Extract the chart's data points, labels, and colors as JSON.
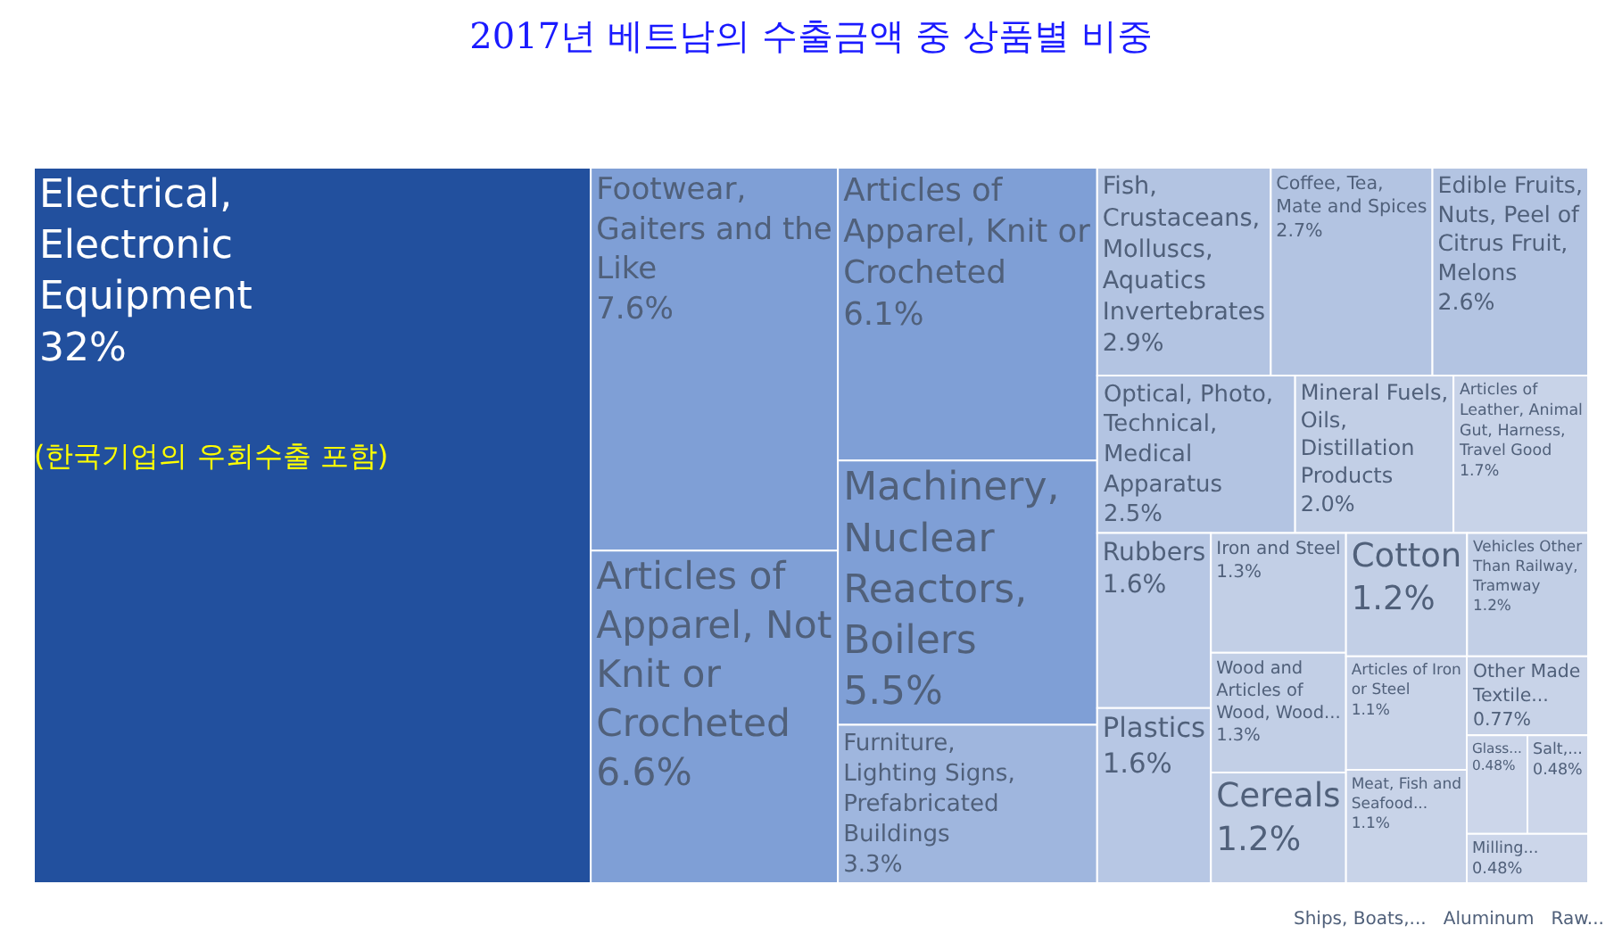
{
  "chart_data": {
    "type": "other",
    "title": "2017년 베트남의 수출금액 중 상품별 비중",
    "categories": [
      "Electrical, Electronic Equipment",
      "Footwear, Gaiters and the Like",
      "Articles of Apparel, Not Knit or Crocheted",
      "Articles of Apparel, Knit or Crocheted",
      "Machinery, Nuclear Reactors, Boilers",
      "Furniture, Lighting Signs, Prefabricated Buildings",
      "Fish, Crustaceans, Molluscs, Aquatics Invertebrates",
      "Coffee, Tea, Mate and Spices",
      "Edible Fruits, Nuts, Peel of Citrus Fruit, Melons",
      "Optical, Photo, Technical, Medical Apparatus",
      "Mineral Fuels, Oils, Distillation Products",
      "Iron and Steel",
      "Cereals",
      "Cotton",
      "Vehicles Other Than Railway, Tramway",
      "Articles of Leather, Animal Gut, Harness, Travel Good",
      "Articles of Iron or Steel",
      "Meat, Fish and Seafood...",
      "Other Made Textile...",
      "Rubbers",
      "Plastics",
      "Wood and Articles of Wood, Wood...",
      "Glass...",
      "Salt,...",
      "Milling..."
    ],
    "values": [
      32,
      7.6,
      6.6,
      6.1,
      5.5,
      3.3,
      2.9,
      2.7,
      2.6,
      2.5,
      2.0,
      1.3,
      1.2,
      1.2,
      1.2,
      1.7,
      1.1,
      1.1,
      0.77,
      1.6,
      1.6,
      1.3,
      0.48,
      0.48,
      0.48
    ],
    "value_labels": [
      "32%",
      "7.6%",
      "6.6%",
      "6.1%",
      "5.5%",
      "3.3%",
      "2.9%",
      "2.7%",
      "2.6%",
      "2.5%",
      "2.0%",
      "1.3%",
      "1.2%",
      "1.2%",
      "1.2%",
      "1.7%",
      "1.1%",
      "1.1%",
      "0.77%",
      "1.6%",
      "1.6%",
      "1.3%",
      "0.48%",
      "0.48%",
      "0.48%"
    ],
    "colors": [
      "#22509e",
      "#7f9fd6",
      "#7f9fd6",
      "#7f9fd6",
      "#7f9fd6",
      "#9fb6de",
      "#b3c4e2",
      "#b3c4e2",
      "#b3c4e2",
      "#b3c4e2",
      "#c2cfe6",
      "#c2cfe6",
      "#c2cfe6",
      "#c2cfe6",
      "#c2cfe6",
      "#c8d3e8",
      "#c8d3e8",
      "#c8d3e8",
      "#c8d3e8",
      "#b7c7e4",
      "#b7c7e4",
      "#c2cfe6",
      "#ccd6ea",
      "#ccd6ea",
      "#ccd6ea"
    ],
    "annotations": [
      "(한국기업의 우회수출 포함)",
      "Ships, Boats,...",
      "Aluminum",
      "Raw..."
    ]
  }
}
